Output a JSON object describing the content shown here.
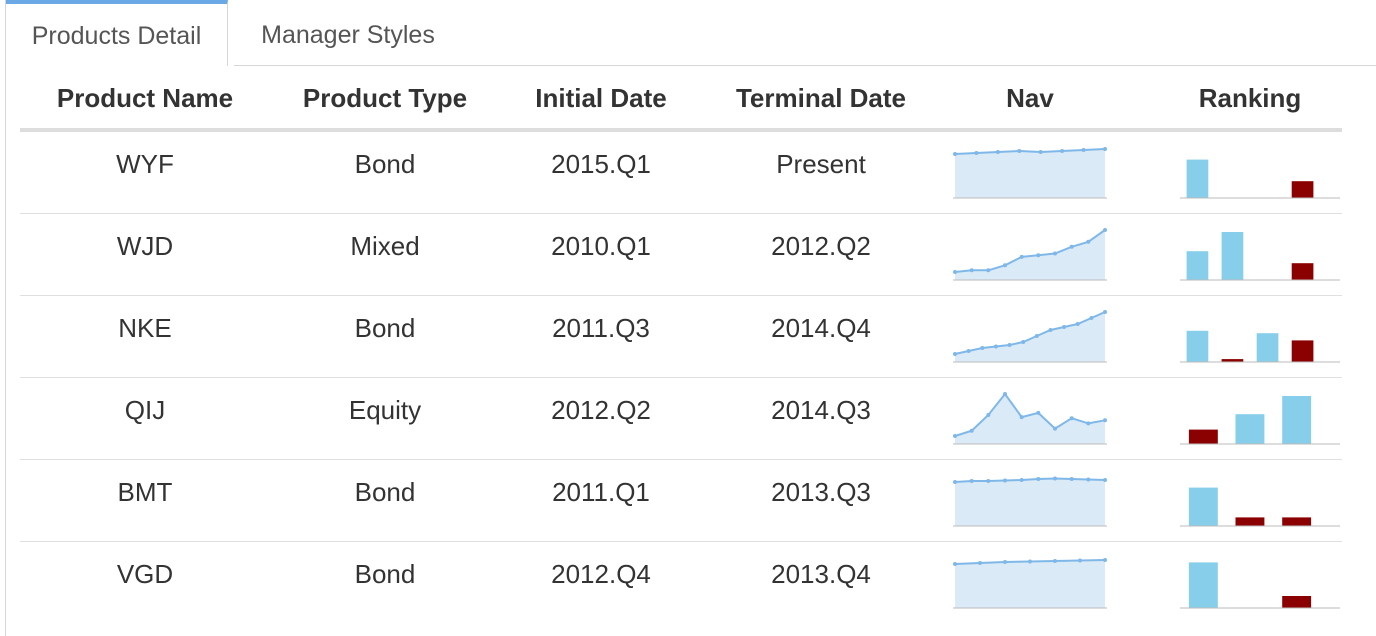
{
  "tabs": [
    {
      "label": "Products Detail",
      "active": true
    },
    {
      "label": "Manager Styles",
      "active": false
    }
  ],
  "table": {
    "headers": {
      "product_name": "Product Name",
      "product_type": "Product Type",
      "initial_date": "Initial Date",
      "terminal_date": "Terminal Date",
      "nav": "Nav",
      "ranking": "Ranking"
    },
    "rows": [
      {
        "product_name": "WYF",
        "product_type": "Bond",
        "initial_date": "2015.Q1",
        "terminal_date": "Present",
        "nav": [
          1.0,
          1.01,
          1.02,
          1.03,
          1.02,
          1.03,
          1.04,
          1.05
        ],
        "ranking": [
          {
            "value": 0.8,
            "color": "#87ceeb"
          },
          {
            "value": 0.0,
            "color": "#87ceeb"
          },
          {
            "value": 0.0,
            "color": "#87ceeb"
          },
          {
            "value": 0.35,
            "color": "#8b0000"
          }
        ]
      },
      {
        "product_name": "WJD",
        "product_type": "Mixed",
        "initial_date": "2010.Q1",
        "terminal_date": "2012.Q2",
        "nav": [
          1.0,
          1.01,
          1.01,
          1.04,
          1.09,
          1.1,
          1.11,
          1.15,
          1.18,
          1.25
        ],
        "ranking": [
          {
            "value": 0.6,
            "color": "#87ceeb"
          },
          {
            "value": 1.0,
            "color": "#87ceeb"
          },
          {
            "value": 0.0,
            "color": "#87ceeb"
          },
          {
            "value": 0.35,
            "color": "#8b0000"
          }
        ]
      },
      {
        "product_name": "NKE",
        "product_type": "Bond",
        "initial_date": "2011.Q3",
        "terminal_date": "2014.Q4",
        "nav": [
          1.0,
          1.01,
          1.02,
          1.025,
          1.03,
          1.04,
          1.06,
          1.08,
          1.09,
          1.1,
          1.12,
          1.14
        ],
        "ranking": [
          {
            "value": 0.65,
            "color": "#87ceeb"
          },
          {
            "value": 0.06,
            "color": "#8b0000"
          },
          {
            "value": 0.6,
            "color": "#87ceeb"
          },
          {
            "value": 0.45,
            "color": "#8b0000"
          }
        ]
      },
      {
        "product_name": "QIJ",
        "product_type": "Equity",
        "initial_date": "2012.Q2",
        "terminal_date": "2014.Q3",
        "nav": [
          1.0,
          1.05,
          1.2,
          1.4,
          1.18,
          1.22,
          1.07,
          1.17,
          1.12,
          1.15
        ],
        "ranking": [
          {
            "value": 0.3,
            "color": "#8b0000"
          },
          {
            "value": 0.62,
            "color": "#87ceeb"
          },
          {
            "value": 1.0,
            "color": "#87ceeb"
          }
        ]
      },
      {
        "product_name": "BMT",
        "product_type": "Bond",
        "initial_date": "2011.Q1",
        "terminal_date": "2013.Q3",
        "nav": [
          1.0,
          1.01,
          1.01,
          1.015,
          1.02,
          1.03,
          1.035,
          1.03,
          1.025,
          1.02
        ],
        "ranking": [
          {
            "value": 0.8,
            "color": "#87ceeb"
          },
          {
            "value": 0.18,
            "color": "#8b0000"
          },
          {
            "value": 0.18,
            "color": "#8b0000"
          }
        ]
      },
      {
        "product_name": "VGD",
        "product_type": "Bond",
        "initial_date": "2012.Q4",
        "terminal_date": "2013.Q4",
        "nav": [
          1.0,
          1.01,
          1.02,
          1.025,
          1.03,
          1.035,
          1.04
        ],
        "ranking": [
          {
            "value": 0.95,
            "color": "#87ceeb"
          },
          {
            "value": 0.0,
            "color": "#87ceeb"
          },
          {
            "value": 0.25,
            "color": "#8b0000"
          }
        ]
      }
    ]
  },
  "colors": {
    "tab_accent": "#6aa9e6",
    "nav_line": "#7fb8e8",
    "nav_fill": "#dbeaf7",
    "rank_positive": "#87ceeb",
    "rank_negative": "#8b0000"
  }
}
